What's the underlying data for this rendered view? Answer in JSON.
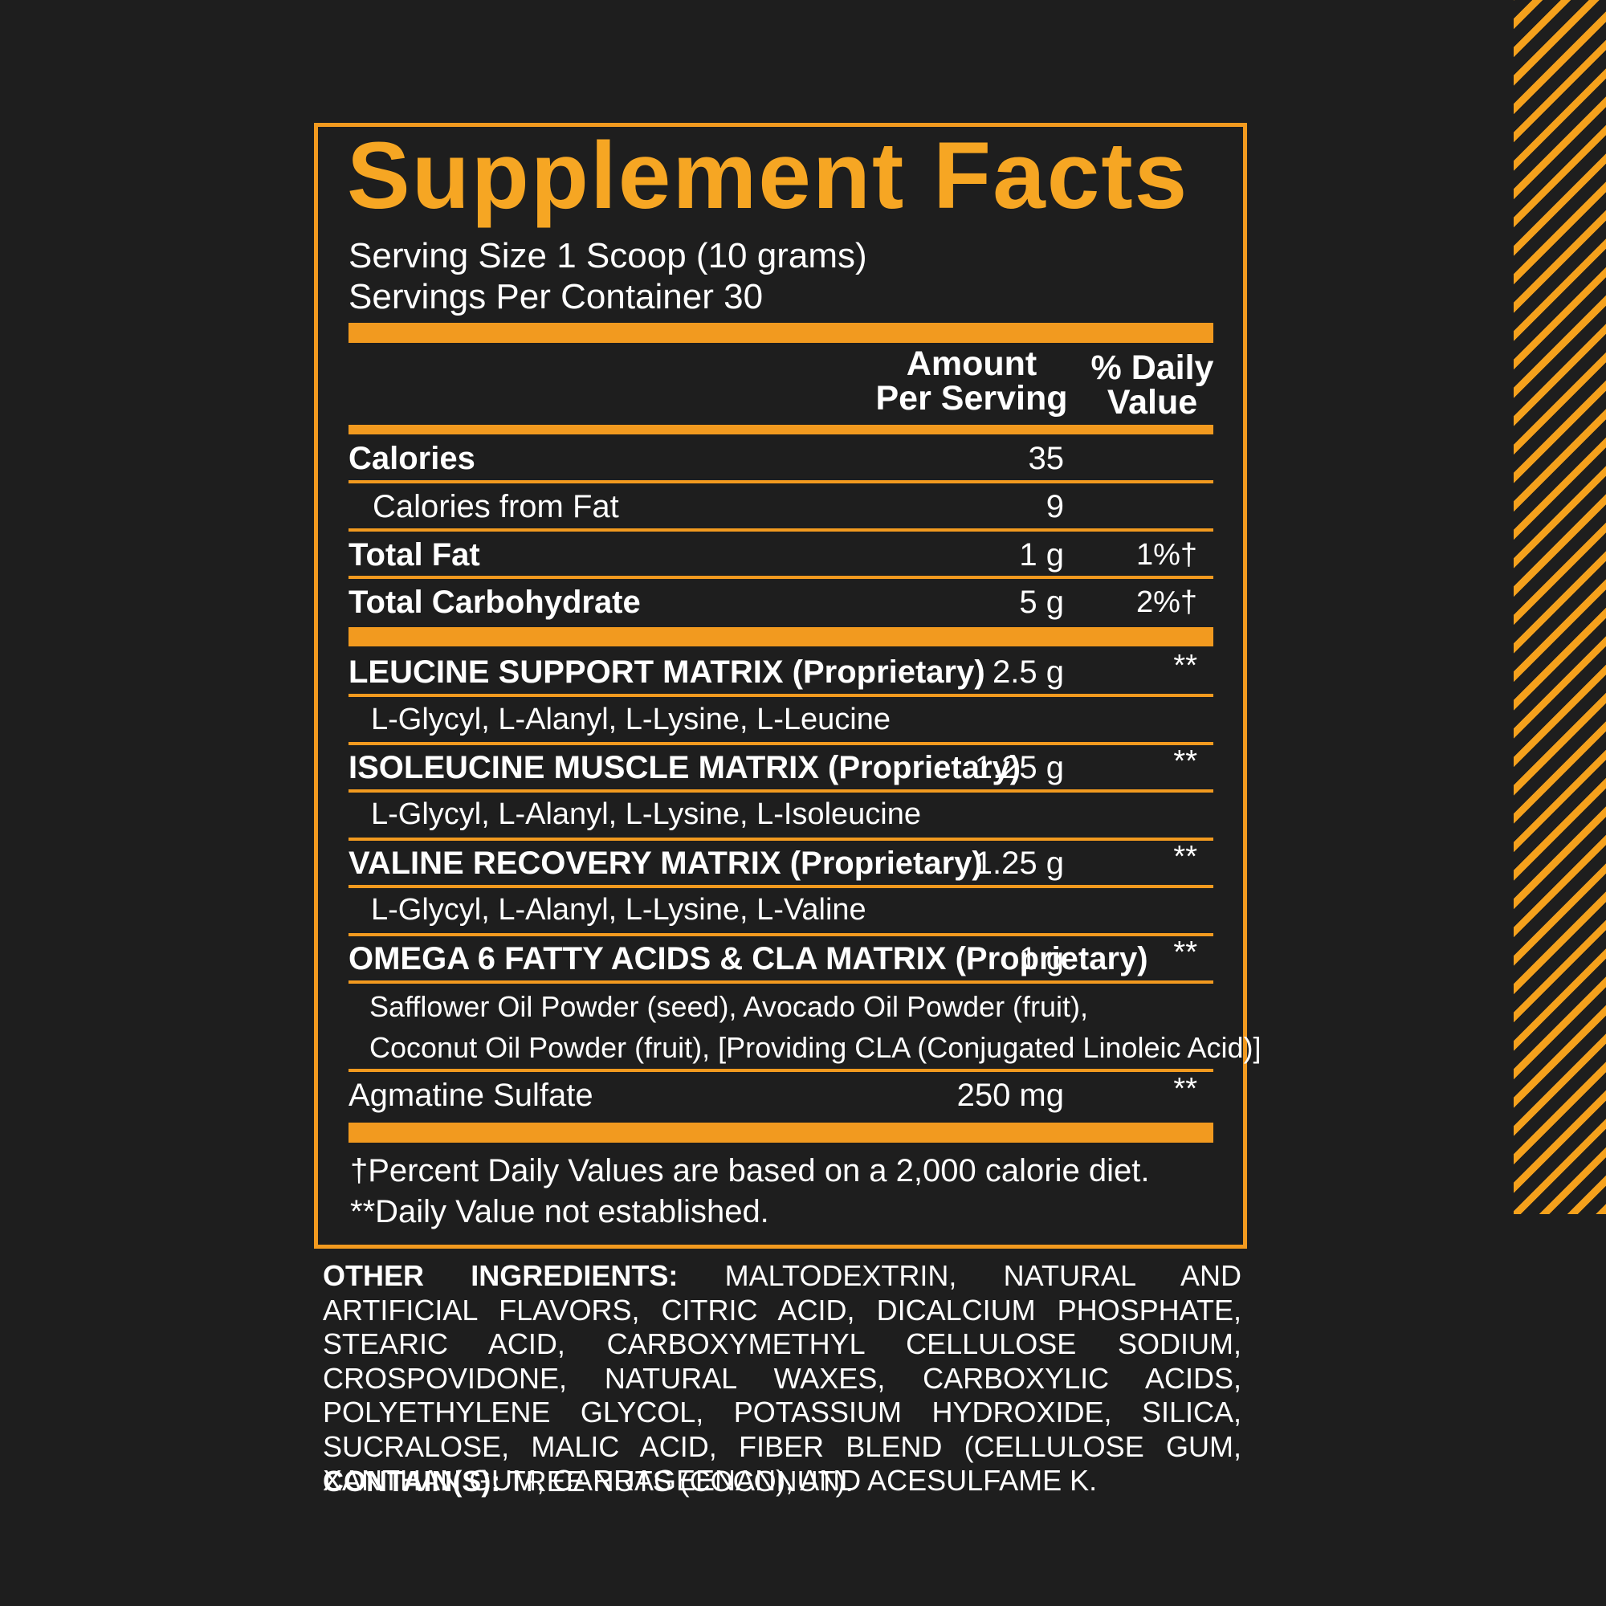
{
  "title": "Supplement Facts",
  "serving_size": "Serving Size 1 Scoop (10 grams)",
  "servings_per_container": "Servings Per Container 30",
  "header": {
    "amount_line1": "Amount",
    "amount_line2": "Per Serving",
    "dv_line1": "% Daily",
    "dv_line2": "Value"
  },
  "rows": [
    {
      "label": "Calories",
      "amount": "35",
      "dv": ""
    },
    {
      "label": "Calories from Fat",
      "amount": "9",
      "dv": ""
    },
    {
      "label": "Total Fat",
      "amount": "1 g",
      "dv": "1%†"
    },
    {
      "label": "Total Carbohydrate",
      "amount": "5 g",
      "dv": "2%†"
    }
  ],
  "blends": [
    {
      "name": "LEUCINE SUPPORT MATRIX",
      "suffix": " (Proprietary)",
      "amount": "2.5 g",
      "dv": "**",
      "ingredients": "L-Glycyl, L-Alanyl, L-Lysine, L-Leucine"
    },
    {
      "name": "ISOLEUCINE MUSCLE MATRIX",
      "suffix": " (Proprietary)",
      "amount": "1.25 g",
      "dv": "**",
      "ingredients": "L-Glycyl, L-Alanyl, L-Lysine, L-Isoleucine"
    },
    {
      "name": "VALINE RECOVERY MATRIX",
      "suffix": " (Proprietary)",
      "amount": "1.25 g",
      "dv": "**",
      "ingredients": "L-Glycyl, L-Alanyl, L-Lysine, L-Valine"
    },
    {
      "name": "OMEGA 6 FATTY ACIDS  & CLA MATRIX",
      "suffix": " (Proprietary)",
      "amount": "1 g",
      "dv": "**",
      "ingredients_line1": "Safflower Oil Powder (seed), Avocado Oil Powder (fruit),",
      "ingredients_line2": "Coconut Oil Powder (fruit), [Providing CLA (Conjugated Linoleic Acid)]"
    }
  ],
  "agmatine": {
    "label": "Agmatine Sulfate",
    "amount": "250 mg",
    "dv": "**"
  },
  "footnote1": "†Percent Daily Values are based on a 2,000 calorie diet.",
  "footnote2": "**Daily Value not established.",
  "other_ingredients_label": "OTHER INGREDIENTS:",
  "other_ingredients": " MALTODEXTRIN, NATURAL AND ARTIFICIAL FLAVORS, CITRIC ACID, DICALCIUM PHOSPHATE, STEARIC ACID, CARBOXYMETHYL CELLULOSE SODIUM, CROSPOVIDONE, NATURAL WAXES, CARBOXYLIC ACIDS, POLYETHYLENE GLYCOL, POTASSIUM HYDROXIDE, SILICA, SUCRALOSE, MALIC ACID, FIBER BLEND (CELLULOSE GUM, XANTHAN GUM, CARRAGEENAN), AND ACESULFAME K.",
  "contains_label": "CONTAIN(S):",
  "contains": " TREE NUTS (COCONUT).",
  "colors": {
    "accent": "#f29a1f",
    "title": "#f6a623",
    "background": "#1e1e1e",
    "text": "#ffffff"
  }
}
